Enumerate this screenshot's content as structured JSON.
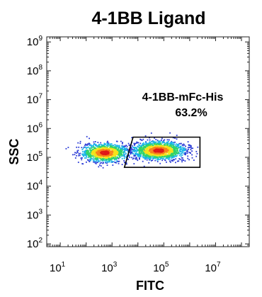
{
  "chart_data": {
    "type": "scatter",
    "title": "4-1BB Ligand",
    "xlabel": "FITC",
    "ylabel": "SSC",
    "x_scale": "log",
    "y_scale": "log",
    "xlim": [
      3,
      200000000
    ],
    "ylim": [
      80,
      1500000000
    ],
    "x_ticks": [
      {
        "base": "10",
        "exp": "1",
        "value": 10
      },
      {
        "base": "10",
        "exp": "3",
        "value": 1000
      },
      {
        "base": "10",
        "exp": "5",
        "value": 100000
      },
      {
        "base": "10",
        "exp": "7",
        "value": 10000000
      }
    ],
    "y_ticks": [
      {
        "base": "10",
        "exp": "2",
        "value": 100
      },
      {
        "base": "10",
        "exp": "3",
        "value": 1000
      },
      {
        "base": "10",
        "exp": "4",
        "value": 10000
      },
      {
        "base": "10",
        "exp": "5",
        "value": 100000
      },
      {
        "base": "10",
        "exp": "6",
        "value": 1000000
      },
      {
        "base": "10",
        "exp": "7",
        "value": 10000000
      },
      {
        "base": "10",
        "exp": "8",
        "value": 100000000
      },
      {
        "base": "10",
        "exp": "9",
        "value": 1000000000
      }
    ],
    "populations": [
      {
        "center_x": 500,
        "center_y": 150000,
        "spread_log_x": 0.45,
        "spread_log_y": 0.16,
        "count": 1100
      },
      {
        "center_x": 60000,
        "center_y": 180000,
        "spread_log_x": 0.5,
        "spread_log_y": 0.16,
        "count": 1500
      }
    ],
    "gate": {
      "name": "4-1BB-mFc-His",
      "percent": "63.2%",
      "vertices": [
        [
          6500,
          500000
        ],
        [
          2500000,
          500000
        ],
        [
          2500000,
          45000
        ],
        [
          3000,
          45000
        ]
      ]
    },
    "density_colors": [
      "#2b3bd6",
      "#19b5e8",
      "#2fd36a",
      "#f5e21a",
      "#f7821b",
      "#e01818"
    ]
  }
}
